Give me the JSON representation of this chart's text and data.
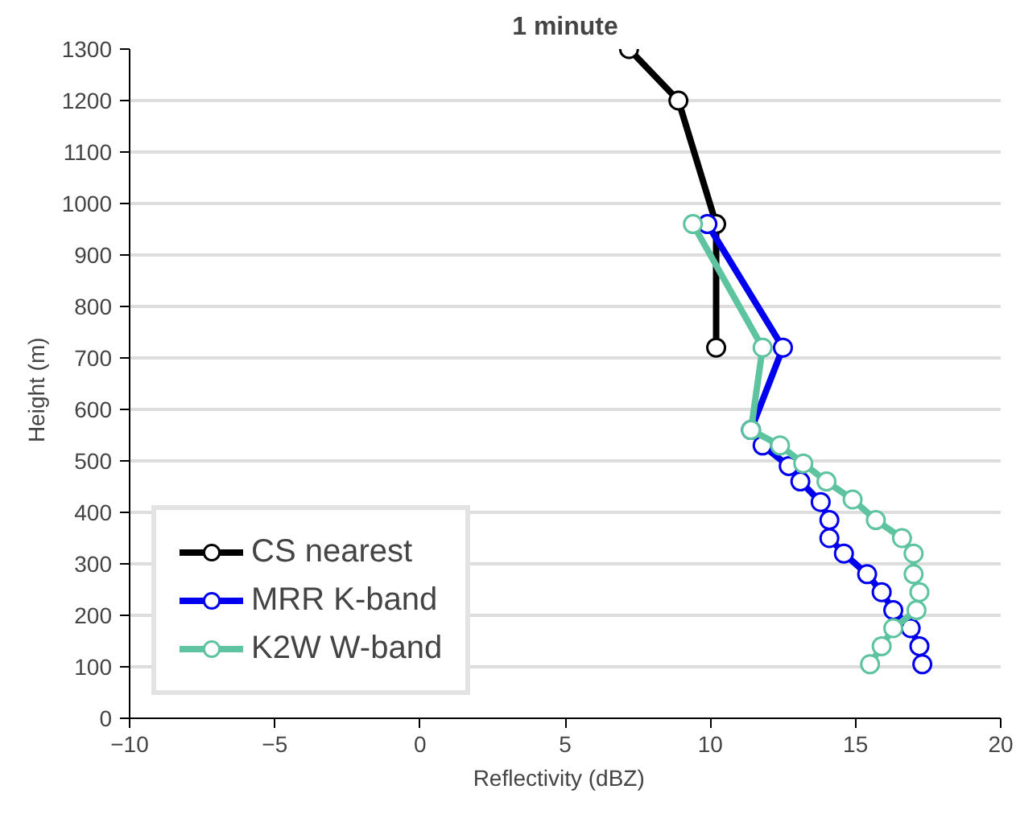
{
  "chart_data": {
    "type": "line",
    "title": "1 minute",
    "xlabel": "Reflectivity   (dBZ)",
    "ylabel": "Height   (m)",
    "xlim": [
      -10,
      20
    ],
    "xticks": [
      -10,
      -5,
      0,
      5,
      10,
      15,
      20
    ],
    "ylim": [
      0,
      1300
    ],
    "yticks": [
      0,
      100,
      200,
      300,
      400,
      500,
      600,
      700,
      800,
      900,
      1000,
      1100,
      1200,
      1300
    ],
    "grid": "y",
    "legend": "bottom left",
    "marker": "circle",
    "line_style": "solid",
    "series": [
      {
        "name": "CS nearest",
        "color": "#000000",
        "x": [
          7.2,
          8.9,
          10.2,
          10.2
        ],
        "values": [
          1300,
          1200,
          960,
          720
        ]
      },
      {
        "name": "MRR K-band",
        "color": "#0000ee",
        "x": [
          9.9,
          12.5,
          11.4,
          11.8,
          12.7,
          13.1,
          13.8,
          14.1,
          14.1,
          14.6,
          15.4,
          15.9,
          16.3,
          16.9,
          17.2,
          17.3
        ],
        "values": [
          960,
          720,
          560,
          530,
          490,
          460,
          420,
          385,
          350,
          320,
          280,
          245,
          210,
          175,
          140,
          105
        ]
      },
      {
        "name": "K2W W-band",
        "color": "#5ec4a0",
        "x": [
          9.4,
          11.8,
          11.4,
          12.4,
          13.2,
          14.0,
          14.9,
          15.7,
          16.6,
          17.0,
          17.0,
          17.2,
          17.1,
          16.3,
          15.9,
          15.5
        ],
        "values": [
          960,
          720,
          560,
          530,
          495,
          460,
          425,
          385,
          350,
          320,
          280,
          245,
          210,
          175,
          140,
          105
        ]
      }
    ]
  }
}
